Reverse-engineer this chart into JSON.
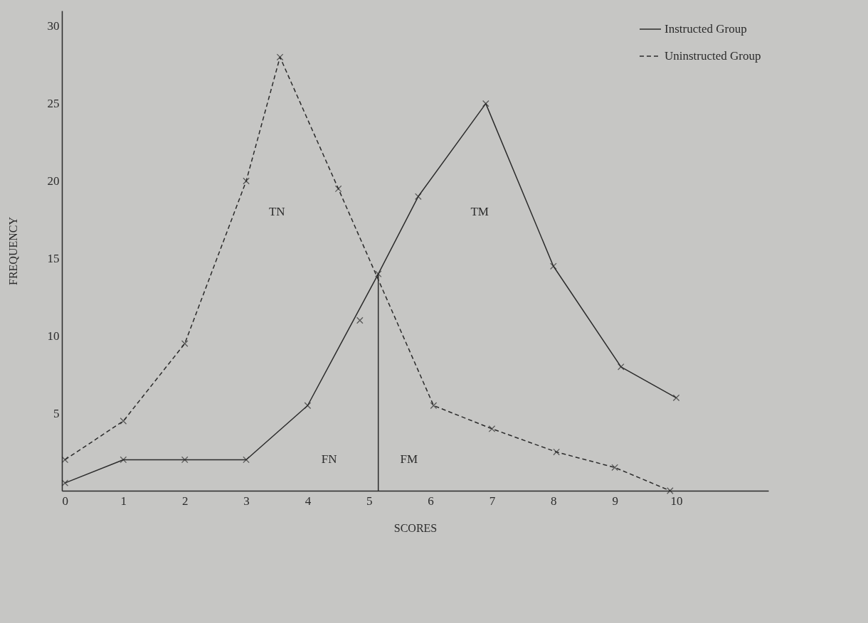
{
  "chart_data": {
    "type": "line",
    "xlabel": "SCORES",
    "ylabel": "FREQUENCY",
    "xlim": [
      0,
      11.5
    ],
    "ylim": [
      0,
      31
    ],
    "xticks": [
      0,
      1,
      2,
      3,
      4,
      5,
      6,
      7,
      8,
      9,
      10
    ],
    "yticks": [
      5,
      10,
      15,
      20,
      25,
      30
    ],
    "grid": false,
    "legend": "top right",
    "marker": "cross",
    "series": [
      {
        "name": "Instructed Group",
        "color": "#2b2b2b",
        "line_style": "solid",
        "x": [
          0.05,
          1,
          2,
          3,
          4,
          5.15,
          5.8,
          6.9,
          8,
          9.1,
          10
        ],
        "values": [
          0.5,
          2,
          2,
          2,
          5.5,
          14,
          19,
          25,
          14.5,
          8,
          6
        ]
      },
      {
        "name": "Uninstructed Group",
        "color": "#2b2b2b",
        "line_style": "dashed",
        "x": [
          0.05,
          1,
          2,
          3,
          3.55,
          4.5,
          6.05,
          7,
          8.05,
          9,
          9.9
        ],
        "values": [
          2,
          4.5,
          9.5,
          20,
          28,
          19.5,
          5.5,
          4,
          2.5,
          1.5,
          0
        ]
      },
      {
        "type": "scatter",
        "color": "#2b2b2b",
        "x": [
          4.85
        ],
        "values": [
          11
        ]
      },
      {
        "color": "#2b2b2b",
        "line_style": "solid",
        "marker": "none",
        "x": [
          5.15,
          5.15
        ],
        "values": [
          0,
          14
        ]
      }
    ],
    "annotations": [
      "TN",
      "TM",
      "FN",
      "FM"
    ]
  }
}
